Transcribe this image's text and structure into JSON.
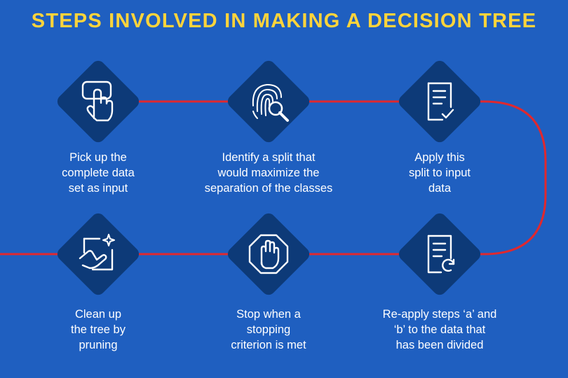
{
  "title": "STEPS INVOLVED IN MAKING A DECISION TREE",
  "colors": {
    "background": "#1f5fc0",
    "diamond": "#0d3a78",
    "connector": "#e0282e",
    "title": "#ffd43b",
    "text": "#ffffff"
  },
  "steps": [
    {
      "icon": "hand-touch-icon",
      "label": "Pick up the\ncomplete data\nset as input"
    },
    {
      "icon": "fingerprint-search-icon",
      "label": "Identify a split that\nwould maximize the\nseparation of the classes"
    },
    {
      "icon": "document-check-icon",
      "label": "Apply this\nsplit to input\ndata"
    },
    {
      "icon": "cleaning-hand-sparkle-icon",
      "label": "Clean up\nthe tree by\npruning"
    },
    {
      "icon": "stop-hand-octagon-icon",
      "label": "Stop when a\nstopping\ncriterion is met"
    },
    {
      "icon": "document-refresh-icon",
      "label": "Re-apply steps ‘a’ and\n‘b’ to the data that\nhas been divided"
    }
  ]
}
